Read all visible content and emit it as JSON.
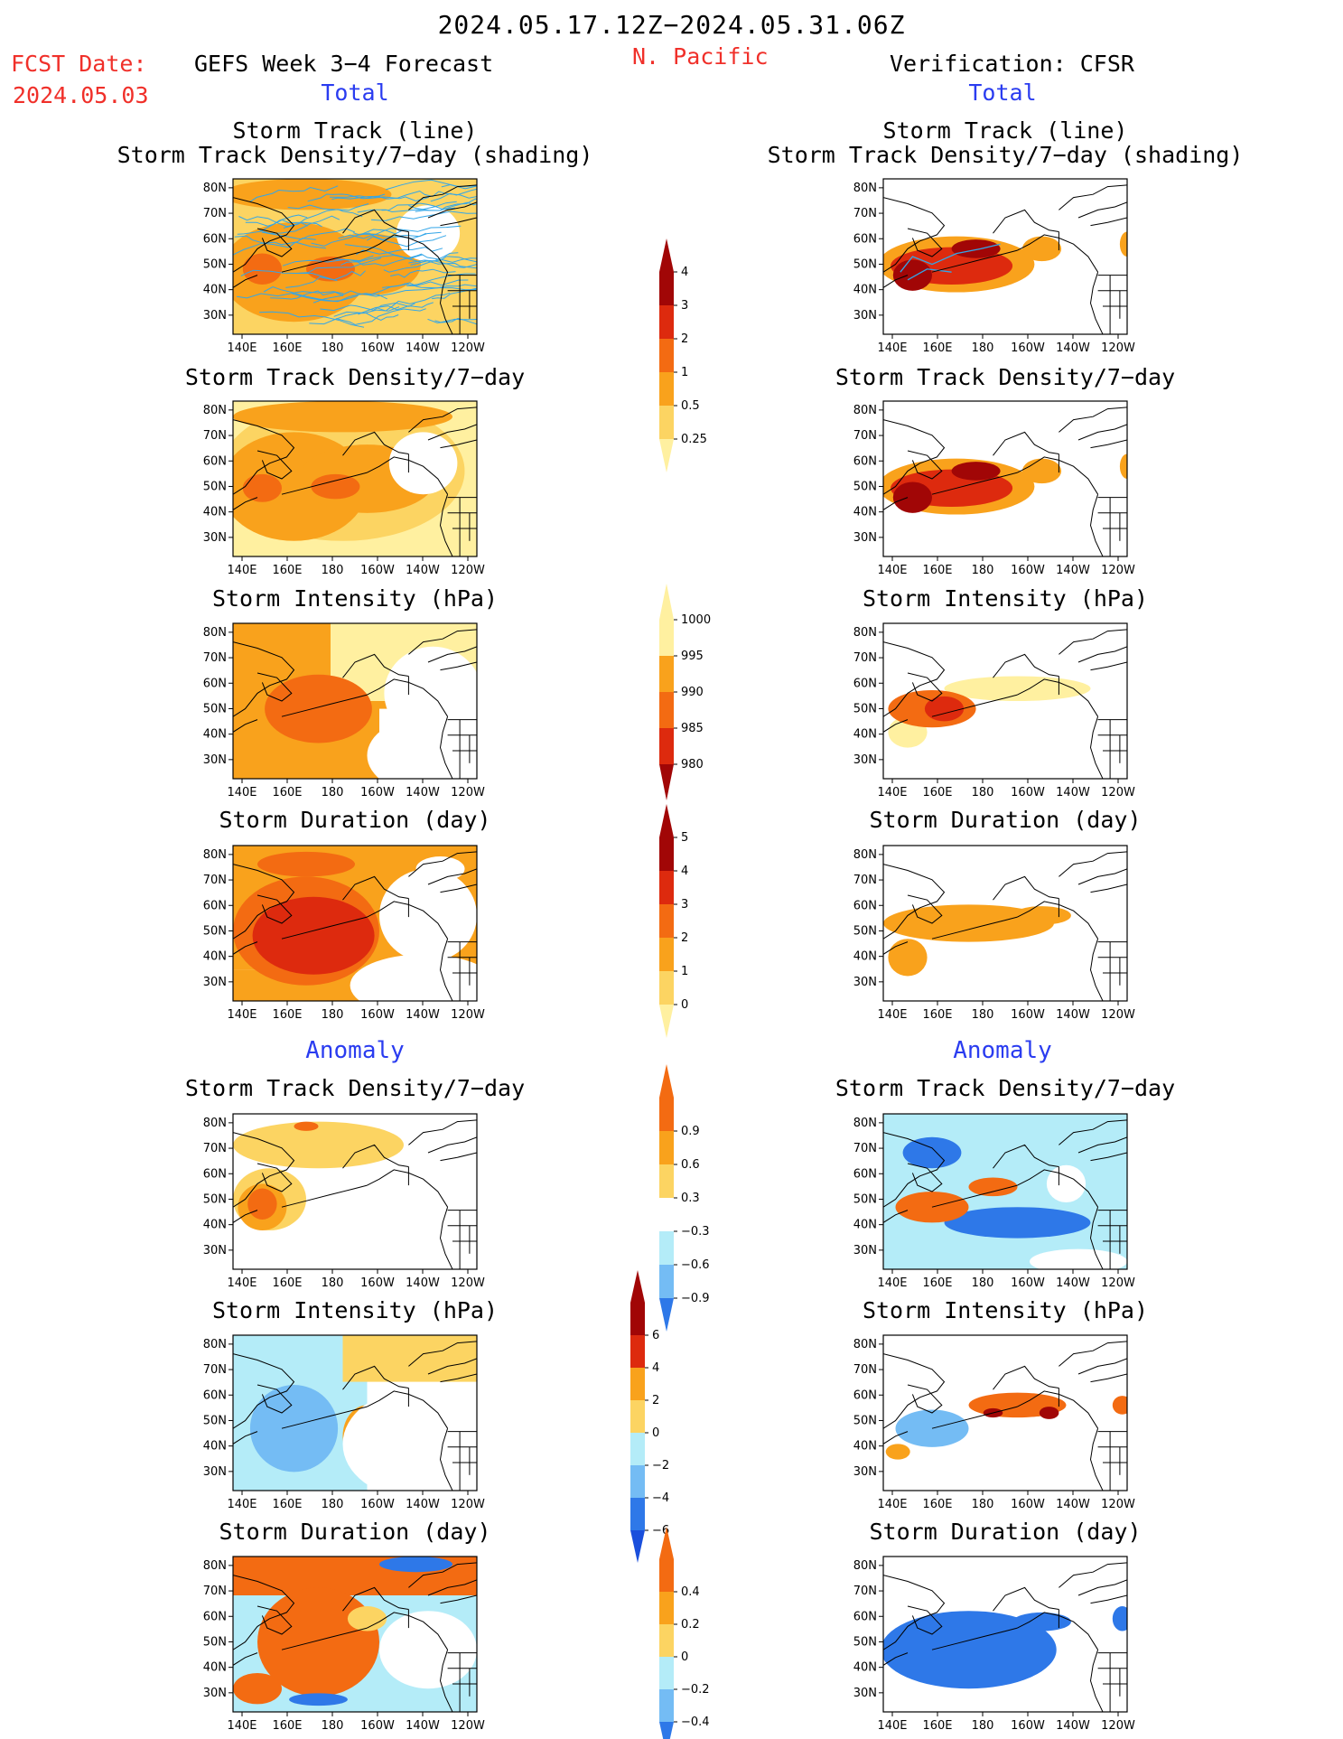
{
  "header": {
    "date_range": "2024.05.17.12Z−2024.05.31.06Z",
    "fcst_label": "FCST Date:",
    "fcst_date": "2024.05.03",
    "model_title": "GEFS Week 3−4 Forecast",
    "region": "N. Pacific",
    "verification": "Verification: CFSR",
    "total_left": "Total",
    "total_right": "Total",
    "anomaly_left": "Anomaly",
    "anomaly_right": "Anomaly"
  },
  "axes": {
    "x_ticks": [
      "140E",
      "160E",
      "180",
      "160W",
      "140W",
      "120W"
    ],
    "y_ticks": [
      "80N",
      "70N",
      "60N",
      "50N",
      "40N",
      "30N"
    ]
  },
  "panels": {
    "track_line_title_1": "Storm Track (line)",
    "track_line_title_2": "Storm Track Density/7−day (shading)",
    "density_title": "Storm Track Density/7−day",
    "intensity_title": "Storm Intensity (hPa)",
    "duration_title": "Storm Duration (day)"
  },
  "colors": {
    "c1": "#fff0a0",
    "c2": "#fcd462",
    "c3": "#f9a21c",
    "c4": "#f36b12",
    "c5": "#dd2a0e",
    "c6": "#a10606",
    "b1": "#b4ecf8",
    "b2": "#74bcf4",
    "b3": "#2e78e8",
    "b4": "#1a4fdc",
    "track_line": "#33a6e8",
    "coast": "#000000"
  },
  "chart_data": [
    {
      "type": "heatmap",
      "name": "density_colorbar",
      "levels": [
        "4",
        "3",
        "2",
        "1",
        "0.5",
        "0.25"
      ],
      "colors": [
        "#a10606",
        "#dd2a0e",
        "#f36b12",
        "#f9a21c",
        "#fcd462",
        "#fff0a0"
      ]
    },
    {
      "type": "heatmap",
      "name": "intensity_colorbar",
      "levels": [
        "1000",
        "995",
        "990",
        "985",
        "980"
      ],
      "colors": [
        "#fff0a0",
        "#f9a21c",
        "#f36b12",
        "#dd2a0e",
        "#a10606"
      ]
    },
    {
      "type": "heatmap",
      "name": "duration_colorbar",
      "levels": [
        "5",
        "4",
        "3",
        "2",
        "1",
        "0"
      ],
      "colors": [
        "#a10606",
        "#dd2a0e",
        "#f36b12",
        "#f9a21c",
        "#fcd462",
        "#fff0a0"
      ]
    },
    {
      "type": "heatmap",
      "name": "density_anomaly_colorbar",
      "levels": [
        "0.9",
        "0.6",
        "0.3",
        "−0.3",
        "−0.6",
        "−0.9"
      ],
      "colors": [
        "#f36b12",
        "#f9a21c",
        "#fcd462",
        "#ffffff",
        "#b4ecf8",
        "#74bcf4",
        "#2e78e8"
      ]
    },
    {
      "type": "heatmap",
      "name": "intensity_anomaly_colorbar",
      "levels": [
        "6",
        "4",
        "2",
        "0",
        "−2",
        "−4",
        "−6"
      ],
      "colors": [
        "#a10606",
        "#dd2a0e",
        "#f9a21c",
        "#fcd462",
        "#b4ecf8",
        "#74bcf4",
        "#2e78e8",
        "#1a4fdc"
      ]
    },
    {
      "type": "heatmap",
      "name": "duration_anomaly_colorbar",
      "levels": [
        "0.4",
        "0.2",
        "0",
        "−0.2",
        "−0.4"
      ],
      "colors": [
        "#f36b12",
        "#f9a21c",
        "#fcd462",
        "#b4ecf8",
        "#74bcf4",
        "#2e78e8"
      ]
    }
  ]
}
